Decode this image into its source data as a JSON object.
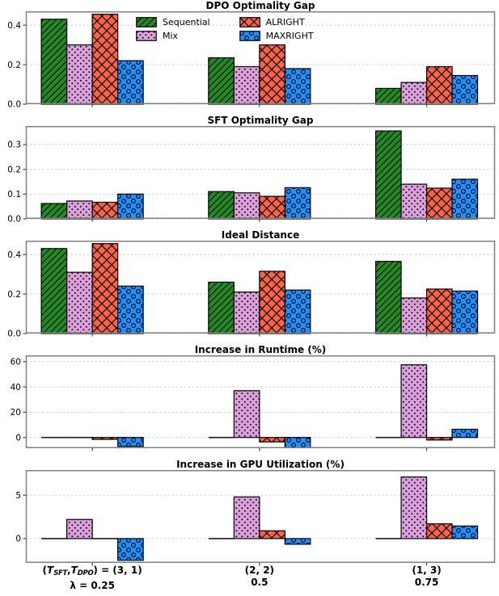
{
  "legend": {
    "items": [
      "Sequential",
      "Mix",
      "ALRIGHT",
      "MAXRIGHT"
    ],
    "position": "upper-center-first-panel",
    "columns": 2
  },
  "styles": {
    "series": [
      {
        "name": "Sequential",
        "color": "#228B22",
        "hatch": "diagonal"
      },
      {
        "name": "Mix",
        "color": "#DDA0DD",
        "hatch": "dots"
      },
      {
        "name": "ALRIGHT",
        "color": "#FF6347",
        "hatch": "cross"
      },
      {
        "name": "MAXRIGHT",
        "color": "#1E90FF",
        "hatch": "circles"
      }
    ],
    "hatch_color": "#000000",
    "grid_color": "#cccccc",
    "frame_color": "#7f7f7f",
    "zero_bar_color": "#1a1a1a",
    "background": "#ffffff"
  },
  "x_axis": {
    "groups": [
      {
        "line1": "(T_SFT,T_DPO) = (3, 1)",
        "line2": "λ = 0.25"
      },
      {
        "line1": "(2, 2)",
        "line2": "0.5"
      },
      {
        "line1": "(1, 3)",
        "line2": "0.75"
      }
    ]
  },
  "chart_data": [
    {
      "type": "bar",
      "title": "DPO Optimality Gap",
      "categories": [
        "(3, 1) λ=0.25",
        "(2, 2) λ=0.5",
        "(1, 3) λ=0.75"
      ],
      "series": [
        {
          "name": "Sequential",
          "values": [
            0.43,
            0.235,
            0.08
          ]
        },
        {
          "name": "Mix",
          "values": [
            0.3,
            0.19,
            0.11
          ]
        },
        {
          "name": "ALRIGHT",
          "values": [
            0.455,
            0.3,
            0.19
          ]
        },
        {
          "name": "MAXRIGHT",
          "values": [
            0.22,
            0.18,
            0.145
          ]
        }
      ],
      "ylim": [
        0,
        0.47
      ],
      "ytick_values": [
        0.0,
        0.2,
        0.4
      ],
      "ytick_labels": [
        "0.0",
        "0.2",
        "0.4"
      ],
      "grid": true,
      "legend_visible": true
    },
    {
      "type": "bar",
      "title": "SFT Optimality Gap",
      "categories": [
        "(3, 1) λ=0.25",
        "(2, 2) λ=0.5",
        "(1, 3) λ=0.75"
      ],
      "series": [
        {
          "name": "Sequential",
          "values": [
            0.062,
            0.11,
            0.355
          ]
        },
        {
          "name": "Mix",
          "values": [
            0.072,
            0.105,
            0.14
          ]
        },
        {
          "name": "ALRIGHT",
          "values": [
            0.067,
            0.091,
            0.124
          ]
        },
        {
          "name": "MAXRIGHT",
          "values": [
            0.1,
            0.126,
            0.16
          ]
        }
      ],
      "ylim": [
        0,
        0.375
      ],
      "ytick_values": [
        0.0,
        0.1,
        0.2,
        0.3
      ],
      "ytick_labels": [
        "0.0",
        "0.1",
        "0.2",
        "0.3"
      ],
      "grid": true,
      "legend_visible": false
    },
    {
      "type": "bar",
      "title": "Ideal Distance",
      "categories": [
        "(3, 1) λ=0.25",
        "(2, 2) λ=0.5",
        "(1, 3) λ=0.75"
      ],
      "series": [
        {
          "name": "Sequential",
          "values": [
            0.43,
            0.26,
            0.365
          ]
        },
        {
          "name": "Mix",
          "values": [
            0.31,
            0.21,
            0.18
          ]
        },
        {
          "name": "ALRIGHT",
          "values": [
            0.455,
            0.315,
            0.225
          ]
        },
        {
          "name": "MAXRIGHT",
          "values": [
            0.24,
            0.22,
            0.215
          ]
        }
      ],
      "ylim": [
        0,
        0.47
      ],
      "ytick_values": [
        0.0,
        0.2,
        0.4
      ],
      "ytick_labels": [
        "0.0",
        "0.2",
        "0.4"
      ],
      "grid": true,
      "legend_visible": false
    },
    {
      "type": "bar",
      "title": "Increase in Runtime (%)",
      "categories": [
        "(3, 1) λ=0.25",
        "(2, 2) λ=0.5",
        "(1, 3) λ=0.75"
      ],
      "series": [
        {
          "name": "Sequential",
          "values": [
            0,
            0,
            0
          ]
        },
        {
          "name": "Mix",
          "values": [
            -0.5,
            37,
            57.5
          ]
        },
        {
          "name": "ALRIGHT",
          "values": [
            -1.5,
            -3.5,
            -2
          ]
        },
        {
          "name": "MAXRIGHT",
          "values": [
            -7,
            -8,
            6.5
          ]
        }
      ],
      "ylim": [
        -8.5,
        65
      ],
      "ytick_values": [
        0,
        20,
        40,
        60
      ],
      "ytick_labels": [
        "0",
        "20",
        "40",
        "60"
      ],
      "grid": true,
      "legend_visible": false
    },
    {
      "type": "bar",
      "title": "Increase in GPU Utilization (%)",
      "categories": [
        "(3, 1) λ=0.25",
        "(2, 2) λ=0.5",
        "(1, 3) λ=0.75"
      ],
      "series": [
        {
          "name": "Sequential",
          "values": [
            0,
            0,
            0
          ]
        },
        {
          "name": "Mix",
          "values": [
            2.2,
            4.8,
            7.1
          ]
        },
        {
          "name": "ALRIGHT",
          "values": [
            0.1,
            0.9,
            1.7
          ]
        },
        {
          "name": "MAXRIGHT",
          "values": [
            -2.5,
            -0.65,
            1.45
          ]
        }
      ],
      "ylim": [
        -2.8,
        7.9
      ],
      "ytick_values": [
        0,
        5
      ],
      "ytick_labels": [
        "0",
        "5"
      ],
      "grid": true,
      "legend_visible": false
    }
  ]
}
